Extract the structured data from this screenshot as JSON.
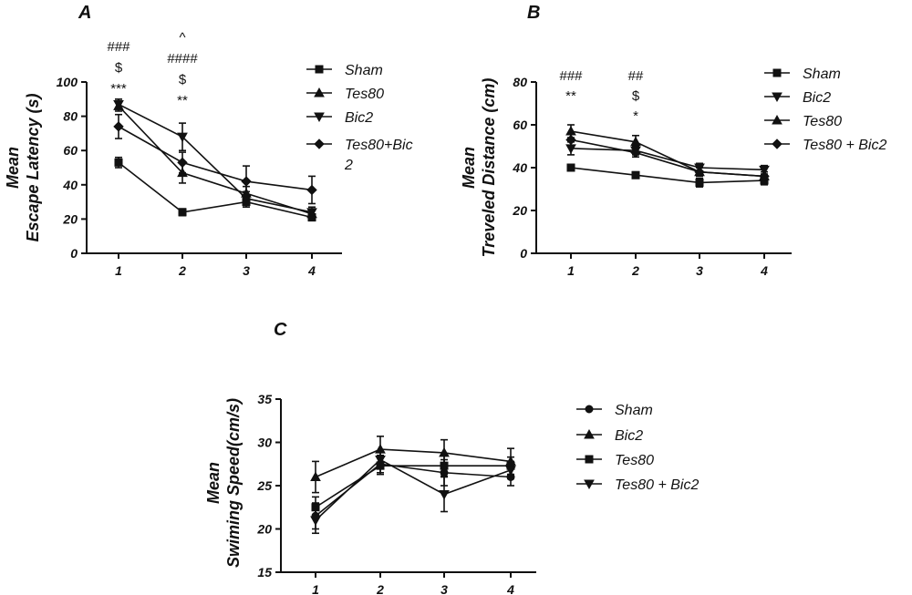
{
  "chart_data": [
    {
      "panel": "A",
      "type": "line",
      "ylabel": [
        "Mean",
        "Escape Latency (s)"
      ],
      "categories": [
        "1",
        "2",
        "3",
        "4"
      ],
      "ylim": [
        0,
        100
      ],
      "yticks": [
        0,
        20,
        40,
        60,
        80,
        100
      ],
      "grid": false,
      "legend_position": "right",
      "series": [
        {
          "name": "Sham",
          "marker": "square",
          "values": [
            53,
            24,
            30,
            21
          ],
          "errors": [
            3,
            2,
            3,
            2
          ]
        },
        {
          "name": "Tes80",
          "marker": "triangle-up",
          "values": [
            86,
            47,
            35,
            23
          ],
          "errors": [
            3,
            6,
            4,
            3
          ]
        },
        {
          "name": "Bic2",
          "marker": "triangle-down",
          "values": [
            87,
            68,
            32,
            24
          ],
          "errors": [
            3,
            8,
            4,
            3
          ]
        },
        {
          "name": "Tes80+Bic\n2",
          "marker": "diamond",
          "values": [
            74,
            53,
            42,
            37
          ],
          "errors": [
            7,
            6,
            9,
            8
          ]
        }
      ],
      "annotations": [
        {
          "x": "1",
          "lines": [
            "###",
            "$",
            "***"
          ]
        },
        {
          "x": "2",
          "lines": [
            "^",
            "####",
            "$",
            "**"
          ]
        }
      ]
    },
    {
      "panel": "B",
      "type": "line",
      "ylabel": [
        "Mean",
        "Treveled Distance (cm)"
      ],
      "categories": [
        "1",
        "2",
        "3",
        "4"
      ],
      "ylim": [
        0,
        80
      ],
      "yticks": [
        0,
        20,
        40,
        60,
        80
      ],
      "grid": false,
      "legend_position": "right",
      "series": [
        {
          "name": "Sham",
          "marker": "square",
          "values": [
            40,
            36.5,
            33,
            34
          ],
          "errors": [
            1.5,
            1.5,
            2,
            2
          ]
        },
        {
          "name": "Bic2",
          "marker": "triangle-down",
          "values": [
            49,
            48,
            40,
            39
          ],
          "errors": [
            3,
            2,
            2,
            2
          ]
        },
        {
          "name": "Tes80",
          "marker": "triangle-up",
          "values": [
            57,
            52,
            38,
            36
          ],
          "errors": [
            3,
            3,
            2,
            2
          ]
        },
        {
          "name": "Tes80 + Bic2",
          "marker": "diamond",
          "values": [
            53,
            47,
            38,
            36
          ],
          "errors": [
            3,
            2,
            2,
            2
          ]
        }
      ],
      "annotations": [
        {
          "x": "1",
          "lines": [
            "###",
            "**"
          ]
        },
        {
          "x": "2",
          "lines": [
            "##",
            "$",
            "*"
          ]
        }
      ]
    },
    {
      "panel": "C",
      "type": "line",
      "ylabel": [
        "Mean",
        "Swiming Speed(cm/s)"
      ],
      "categories": [
        "1",
        "2",
        "3",
        "4"
      ],
      "ylim": [
        15,
        35
      ],
      "yticks": [
        15,
        20,
        25,
        30,
        35
      ],
      "grid": false,
      "legend_position": "right",
      "series": [
        {
          "name": "Sham",
          "marker": "circle",
          "values": [
            21.5,
            27.5,
            26.5,
            26
          ],
          "errors": [
            1.5,
            1,
            1.5,
            1
          ]
        },
        {
          "name": "Bic2",
          "marker": "triangle-up",
          "values": [
            26,
            29.2,
            28.8,
            27.8
          ],
          "errors": [
            1.8,
            1.5,
            1.5,
            1.5
          ]
        },
        {
          "name": "Tes80",
          "marker": "square",
          "values": [
            22.5,
            27.3,
            27.3,
            27.3
          ],
          "errors": [
            1.2,
            1,
            1.2,
            1
          ]
        },
        {
          "name": "Tes80 + Bic2",
          "marker": "triangle-down",
          "values": [
            21,
            28,
            24,
            26.8
          ],
          "errors": [
            1.5,
            1,
            2,
            1
          ]
        }
      ],
      "annotations": []
    }
  ]
}
